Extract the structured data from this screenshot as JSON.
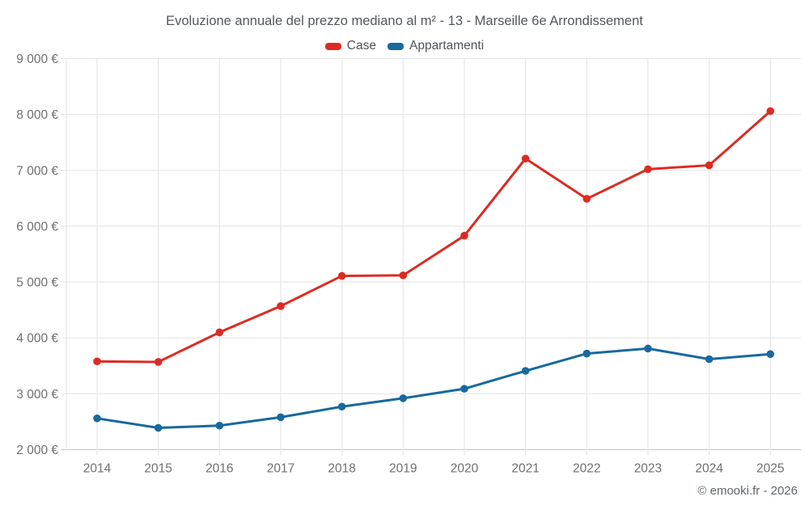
{
  "chart_data": {
    "type": "line",
    "title": "Evoluzione annuale del prezzo mediano al m² - 13 - Marseille 6e Arrondissement",
    "footer": "© emooki.fr - 2026",
    "categories": [
      "2014",
      "2015",
      "2016",
      "2017",
      "2018",
      "2019",
      "2020",
      "2021",
      "2022",
      "2023",
      "2024",
      "2025"
    ],
    "series": [
      {
        "name": "Case",
        "color": "#dc2b23",
        "values": [
          3580,
          3570,
          4100,
          4570,
          5110,
          5120,
          5830,
          7210,
          6490,
          7020,
          7090,
          8060
        ]
      },
      {
        "name": "Appartamenti",
        "color": "#17699e",
        "values": [
          2560,
          2390,
          2430,
          2580,
          2770,
          2920,
          3090,
          3410,
          3720,
          3810,
          3620,
          3710
        ]
      }
    ],
    "ylim": [
      2000,
      9000
    ],
    "ytick_step": 1000,
    "ytick_labels": [
      "2 000 €",
      "3 000 €",
      "4 000 €",
      "5 000 €",
      "6 000 €",
      "7 000 €",
      "8 000 €",
      "9 000 €"
    ],
    "xlabel": "",
    "ylabel": "",
    "grid": true,
    "legend_position": "top",
    "colors": {
      "grid": "#e8e8e8",
      "axis": "#cccccc",
      "tick_text": "#6f6f6f",
      "title_text": "#53585c"
    }
  }
}
